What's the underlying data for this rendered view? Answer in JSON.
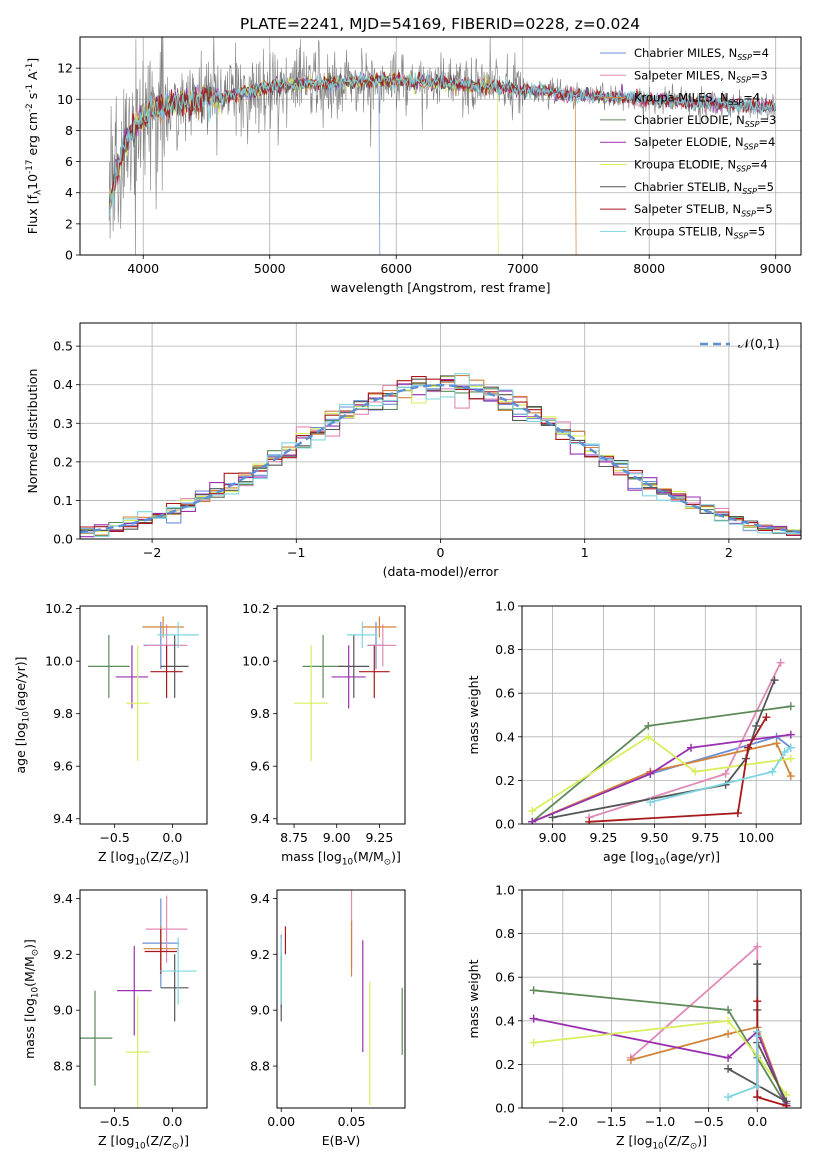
{
  "figure": {
    "title": "PLATE=2241, MJD=54169, FIBERID=0228, z=0.024"
  },
  "models": [
    {
      "name": "Chabrier MILES, N$_{SSP}$=4",
      "color": "#6b8fd6"
    },
    {
      "name": "Salpeter MILES, N$_{SSP}$=3",
      "color": "#e08ab8"
    },
    {
      "name": "Kroupa MILES, N$_{SSP}$=4",
      "color": "#d2843c"
    },
    {
      "name": "Chabrier ELODIE, N$_{SSP}$=3",
      "color": "#5e8a5a"
    },
    {
      "name": "Salpeter ELODIE, N$_{SSP}$=4",
      "color": "#9a2fb0"
    },
    {
      "name": "Kroupa ELODIE, N$_{SSP}$=4",
      "color": "#d8ee5c"
    },
    {
      "name": "Chabrier STELIB, N$_{SSP}$=5",
      "color": "#555555"
    },
    {
      "name": "Salpeter STELIB, N$_{SSP}$=5",
      "color": "#a81818"
    },
    {
      "name": "Kroupa STELIB, N$_{SSP}$=5",
      "color": "#7fd6e0"
    }
  ],
  "chart_data": [
    {
      "id": "spectrum",
      "type": "line",
      "xlabel": "wavelength [Angstrom, rest frame]",
      "ylabel": "Flux [f$_\\lambda$10$^{-17}$ erg cm$^{-2}$ s$^{-1}$ A$^{-1}$]",
      "xlim": [
        3500,
        9200
      ],
      "ylim": [
        0,
        14
      ],
      "xticks": [
        4000,
        5000,
        6000,
        7000,
        8000,
        9000
      ],
      "yticks": [
        0,
        2,
        4,
        6,
        8,
        10,
        12
      ],
      "grid": true,
      "legend": "top-right",
      "continuum": {
        "x": [
          3730,
          3780,
          3850,
          3950,
          4050,
          4200,
          4400,
          4600,
          4800,
          5000,
          5200,
          5400,
          5600,
          5800,
          6000,
          6200,
          6400,
          6600,
          6800,
          7000,
          7200,
          7400,
          7600,
          7800,
          8000,
          8200,
          8400,
          8600,
          8800,
          9000
        ],
        "y": [
          3.0,
          5.0,
          7.0,
          8.5,
          9.2,
          9.6,
          9.9,
          10.1,
          10.4,
          10.8,
          10.9,
          11.0,
          11.1,
          11.2,
          11.2,
          11.1,
          11.0,
          10.9,
          10.8,
          10.6,
          10.5,
          10.3,
          10.2,
          10.1,
          10.0,
          9.9,
          9.8,
          9.7,
          9.6,
          9.5
        ]
      },
      "dropouts": [
        {
          "series": 0,
          "x": 5870
        },
        {
          "series": 5,
          "x": 6800
        },
        {
          "series": 2,
          "x": 7420
        }
      ]
    },
    {
      "id": "residuals",
      "type": "histogram",
      "xlabel": "(data-model)/error",
      "ylabel": "Normed distribution",
      "xlim": [
        -2.5,
        2.5
      ],
      "ylim": [
        0,
        0.56
      ],
      "xticks": [
        -2,
        -1,
        0,
        1,
        2
      ],
      "yticks": [
        0.0,
        0.1,
        0.2,
        0.3,
        0.4,
        0.5
      ],
      "grid": true,
      "legend": "top-right",
      "reference_label": "$\\mathcal{N}(0,1)$",
      "bin_width": 0.1
    },
    {
      "id": "age-vs-Z",
      "type": "scatter",
      "xlabel": "Z [log$_{10}$(Z/Z$_\\odot$)]",
      "ylabel": "age  [log$_{10}$(age/yr)]",
      "xlim": [
        -0.8,
        0.3
      ],
      "ylim": [
        9.38,
        10.21
      ],
      "xticks": [
        -0.5,
        0.0
      ],
      "yticks": [
        9.4,
        9.6,
        9.8,
        10.0,
        10.2
      ],
      "points": [
        {
          "x": -0.1,
          "y": 10.06,
          "xerr": 0.15,
          "yerr": 0.09
        },
        {
          "x": -0.05,
          "y": 10.06,
          "xerr": 0.18,
          "yerr": 0.08
        },
        {
          "x": -0.08,
          "y": 10.13,
          "xerr": 0.18,
          "yerr": 0.04
        },
        {
          "x": -0.55,
          "y": 9.98,
          "xerr": 0.18,
          "yerr": 0.12
        },
        {
          "x": -0.35,
          "y": 9.94,
          "xerr": 0.14,
          "yerr": 0.12
        },
        {
          "x": -0.3,
          "y": 9.84,
          "xerr": 0.1,
          "yerr": 0.22
        },
        {
          "x": 0.02,
          "y": 9.98,
          "xerr": 0.12,
          "yerr": 0.12
        },
        {
          "x": -0.05,
          "y": 9.96,
          "xerr": 0.14,
          "yerr": 0.1
        },
        {
          "x": 0.05,
          "y": 10.1,
          "xerr": 0.18,
          "yerr": 0.05
        }
      ]
    },
    {
      "id": "age-vs-mass",
      "type": "scatter",
      "xlabel": "mass [log$_{10}$(M/M$_\\odot$)]",
      "ylabel": "",
      "xlim": [
        8.65,
        9.4
      ],
      "ylim": [
        9.38,
        10.21
      ],
      "xticks": [
        8.75,
        9.0,
        9.25
      ],
      "yticks": [
        9.4,
        9.6,
        9.8,
        10.0,
        10.2
      ],
      "points": [
        {
          "x": 9.23,
          "y": 10.06,
          "xerr": 0.05,
          "yerr": 0.09
        },
        {
          "x": 9.27,
          "y": 10.06,
          "xerr": 0.08,
          "yerr": 0.08
        },
        {
          "x": 9.25,
          "y": 10.13,
          "xerr": 0.1,
          "yerr": 0.04
        },
        {
          "x": 8.92,
          "y": 9.98,
          "xerr": 0.12,
          "yerr": 0.12
        },
        {
          "x": 9.07,
          "y": 9.94,
          "xerr": 0.1,
          "yerr": 0.12
        },
        {
          "x": 8.85,
          "y": 9.84,
          "xerr": 0.1,
          "yerr": 0.22
        },
        {
          "x": 9.1,
          "y": 9.98,
          "xerr": 0.09,
          "yerr": 0.12
        },
        {
          "x": 9.22,
          "y": 9.96,
          "xerr": 0.09,
          "yerr": 0.1
        },
        {
          "x": 9.15,
          "y": 10.1,
          "xerr": 0.09,
          "yerr": 0.05
        }
      ]
    },
    {
      "id": "weight-vs-age",
      "type": "line",
      "xlabel": "age  [log$_{10}$(age/yr)]",
      "ylabel": "mass weight",
      "xlim": [
        8.85,
        10.22
      ],
      "ylim": [
        0,
        1.0
      ],
      "xticks": [
        9.0,
        9.25,
        9.5,
        9.75,
        10.0
      ],
      "yticks": [
        0.0,
        0.2,
        0.4,
        0.6,
        0.8,
        1.0
      ],
      "grid": true,
      "series": [
        {
          "x": [
            8.9,
            9.48,
            10.1,
            10.17
          ],
          "y": [
            0.01,
            0.23,
            0.4,
            0.35
          ]
        },
        {
          "x": [
            9.18,
            9.85,
            10.12
          ],
          "y": [
            0.03,
            0.23,
            0.74
          ]
        },
        {
          "x": [
            8.9,
            9.48,
            10.1,
            10.17
          ],
          "y": [
            0.01,
            0.24,
            0.37,
            0.22
          ]
        },
        {
          "x": [
            8.9,
            9.47,
            10.17
          ],
          "y": [
            0.01,
            0.45,
            0.54
          ]
        },
        {
          "x": [
            8.9,
            9.48,
            9.68,
            10.17
          ],
          "y": [
            0.01,
            0.23,
            0.35,
            0.41
          ]
        },
        {
          "x": [
            8.9,
            9.47,
            9.7,
            10.17
          ],
          "y": [
            0.06,
            0.4,
            0.24,
            0.3
          ]
        },
        {
          "x": [
            9.0,
            9.85,
            9.95,
            10.0,
            10.09
          ],
          "y": [
            0.03,
            0.18,
            0.3,
            0.45,
            0.66
          ]
        },
        {
          "x": [
            9.18,
            9.91,
            9.96,
            10.05
          ],
          "y": [
            0.01,
            0.05,
            0.35,
            0.49
          ]
        },
        {
          "x": [
            9.48,
            10.08,
            10.14,
            10.17
          ],
          "y": [
            0.1,
            0.24,
            0.33,
            0.35
          ]
        }
      ]
    },
    {
      "id": "mass-vs-Z",
      "type": "scatter",
      "xlabel": "Z [log$_{10}$(Z/Z$_\\odot$)]",
      "ylabel": "mass [log$_{10}$(M/M$_\\odot$)]",
      "xlim": [
        -0.8,
        0.3
      ],
      "ylim": [
        8.65,
        9.43
      ],
      "xticks": [
        -0.5,
        0.0
      ],
      "yticks": [
        8.8,
        9.0,
        9.2,
        9.4
      ],
      "points": [
        {
          "x": -0.1,
          "y": 9.24,
          "xerr": 0.16,
          "yerr": 0.16
        },
        {
          "x": -0.05,
          "y": 9.29,
          "xerr": 0.18,
          "yerr": 0.12
        },
        {
          "x": -0.1,
          "y": 9.22,
          "xerr": 0.15,
          "yerr": 0.08
        },
        {
          "x": -0.67,
          "y": 8.9,
          "xerr": 0.15,
          "yerr": 0.17
        },
        {
          "x": -0.33,
          "y": 9.07,
          "xerr": 0.15,
          "yerr": 0.16
        },
        {
          "x": -0.3,
          "y": 8.85,
          "xerr": 0.1,
          "yerr": 0.2
        },
        {
          "x": 0.02,
          "y": 9.08,
          "xerr": 0.12,
          "yerr": 0.12
        },
        {
          "x": -0.1,
          "y": 9.21,
          "xerr": 0.14,
          "yerr": 0.08
        },
        {
          "x": 0.05,
          "y": 9.14,
          "xerr": 0.16,
          "yerr": 0.12
        }
      ]
    },
    {
      "id": "mass-vs-EBV",
      "type": "scatter",
      "xlabel": "E(B-V)",
      "ylabel": "",
      "xlim": [
        -0.003,
        0.088
      ],
      "ylim": [
        8.65,
        9.43
      ],
      "xticks": [
        0.0,
        0.05
      ],
      "yticks": [
        8.8,
        9.0,
        9.2,
        9.4
      ],
      "points": [
        {
          "x": 0.0,
          "y": 9.14,
          "yerr": 0.13
        },
        {
          "x": 0.05,
          "y": 9.3,
          "yerr": 0.15
        },
        {
          "x": 0.05,
          "y": 9.22,
          "yerr": 0.1
        },
        {
          "x": 0.086,
          "y": 8.96,
          "yerr": 0.12
        },
        {
          "x": 0.058,
          "y": 9.05,
          "yerr": 0.2
        },
        {
          "x": 0.063,
          "y": 8.88,
          "yerr": 0.22
        },
        {
          "x": 0.0,
          "y": 9.08,
          "yerr": 0.12
        },
        {
          "x": 0.003,
          "y": 9.25,
          "yerr": 0.05
        },
        {
          "x": 0.0,
          "y": 9.14,
          "yerr": 0.12
        }
      ]
    },
    {
      "id": "weight-vs-Z",
      "type": "line",
      "xlabel": "Z [log$_{10}$(Z/Z$_\\odot$)]",
      "ylabel": "mass weight",
      "xlim": [
        -2.42,
        0.45
      ],
      "ylim": [
        0,
        1.0
      ],
      "xticks": [
        -2.0,
        -1.5,
        -1.0,
        -0.5,
        0.0
      ],
      "yticks": [
        0.0,
        0.2,
        0.4,
        0.6,
        0.8,
        1.0
      ],
      "grid": true,
      "series": [
        {
          "x": [
            0.0,
            0.0,
            0.0,
            0.3
          ],
          "y": [
            0.05,
            0.23,
            0.35,
            0.02
          ]
        },
        {
          "x": [
            -1.3,
            0.0,
            0.0,
            0.3
          ],
          "y": [
            0.23,
            0.74,
            0.05,
            0.01
          ]
        },
        {
          "x": [
            -1.3,
            -0.3,
            0.0,
            0.3
          ],
          "y": [
            0.22,
            0.34,
            0.37,
            0.01
          ]
        },
        {
          "x": [
            -2.3,
            -0.3,
            0.3
          ],
          "y": [
            0.54,
            0.45,
            0.01
          ]
        },
        {
          "x": [
            -2.3,
            -0.3,
            0.0,
            0.3
          ],
          "y": [
            0.41,
            0.23,
            0.35,
            0.01
          ]
        },
        {
          "x": [
            -2.3,
            -0.3,
            0.0,
            0.3
          ],
          "y": [
            0.3,
            0.4,
            0.24,
            0.06
          ]
        },
        {
          "x": [
            0.0,
            0.0,
            0.0,
            0.3,
            -0.3
          ],
          "y": [
            0.66,
            0.45,
            0.3,
            0.03,
            0.18
          ]
        },
        {
          "x": [
            0.0,
            0.0,
            0.0,
            0.3
          ],
          "y": [
            0.49,
            0.35,
            0.05,
            0.01
          ]
        },
        {
          "x": [
            -0.3,
            0.0,
            0.0,
            0.0
          ],
          "y": [
            0.05,
            0.1,
            0.33,
            0.35
          ]
        }
      ]
    }
  ]
}
